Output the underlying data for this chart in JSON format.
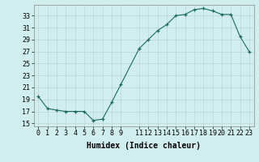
{
  "x": [
    0,
    1,
    2,
    3,
    4,
    5,
    6,
    7,
    8,
    9,
    11,
    12,
    13,
    14,
    15,
    16,
    17,
    18,
    19,
    20,
    21,
    22,
    23
  ],
  "y": [
    19.5,
    17.5,
    17.2,
    17.0,
    17.0,
    17.0,
    15.5,
    15.7,
    18.5,
    21.5,
    27.5,
    29.0,
    30.5,
    31.5,
    33.0,
    33.2,
    34.0,
    34.2,
    33.8,
    33.2,
    33.2,
    29.5,
    27.0
  ],
  "xlabel": "Humidex (Indice chaleur)",
  "xticks": [
    0,
    1,
    2,
    3,
    4,
    5,
    6,
    7,
    8,
    9,
    11,
    12,
    13,
    14,
    15,
    16,
    17,
    18,
    19,
    20,
    21,
    22,
    23
  ],
  "yticks": [
    15,
    17,
    19,
    21,
    23,
    25,
    27,
    29,
    31,
    33
  ],
  "xlim": [
    -0.5,
    23.5
  ],
  "ylim": [
    14.5,
    34.8
  ],
  "line_color": "#1a6b5a",
  "bg_color": "#d0eeee",
  "grid_color": "#c0d8d8",
  "tick_fontsize": 6.0,
  "xlabel_fontsize": 7.0
}
